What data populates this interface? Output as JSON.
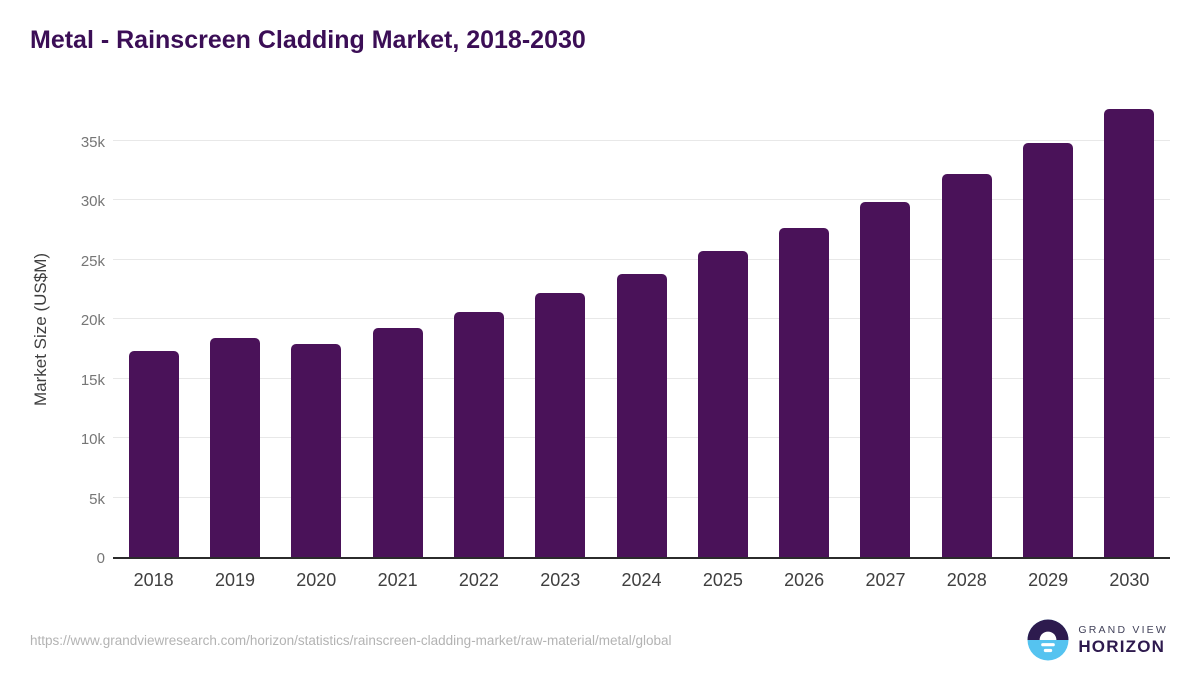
{
  "title": "Metal - Rainscreen Cladding Market, 2018-2030",
  "chart_data": {
    "type": "bar",
    "title": "Metal - Rainscreen Cladding Market, 2018-2030",
    "categories": [
      "2018",
      "2019",
      "2020",
      "2021",
      "2022",
      "2023",
      "2024",
      "2025",
      "2026",
      "2027",
      "2028",
      "2029",
      "2030"
    ],
    "values": [
      17300,
      18450,
      17950,
      19250,
      20650,
      22200,
      23850,
      25750,
      27700,
      29900,
      32250,
      34800,
      37650
    ],
    "xlabel": "",
    "ylabel": "Market Size (US$M)",
    "ylim": [
      0,
      38700
    ],
    "yticks": {
      "values": [
        0,
        5000,
        10000,
        15000,
        20000,
        25000,
        30000,
        35000
      ],
      "labels": [
        "0",
        "5k",
        "10k",
        "15k",
        "20k",
        "25k",
        "30k",
        "35k"
      ]
    },
    "grid": "horizontal",
    "legend": "none",
    "bar_color": "#4a1259"
  },
  "colors": {
    "background": "#ffffff",
    "title_text": "#3b0e56",
    "bar_fill": "#4a1259",
    "gridline": "#e8e8e8",
    "axis_line": "#2b2b2b",
    "y_tick_text": "#767676",
    "x_tick_text": "#3f3f3f",
    "url_text": "#b3b3b3",
    "logo_dark": "#2d1b4e",
    "logo_blue": "#55c3f0"
  },
  "footer": {
    "source_url": "https://www.grandviewresearch.com/horizon/statistics/rainscreen-cladding-market/raw-material/metal/global",
    "logo": {
      "icon": "horizon-sun-icon",
      "line1": "GRAND VIEW",
      "line2": "HORIZON"
    }
  }
}
